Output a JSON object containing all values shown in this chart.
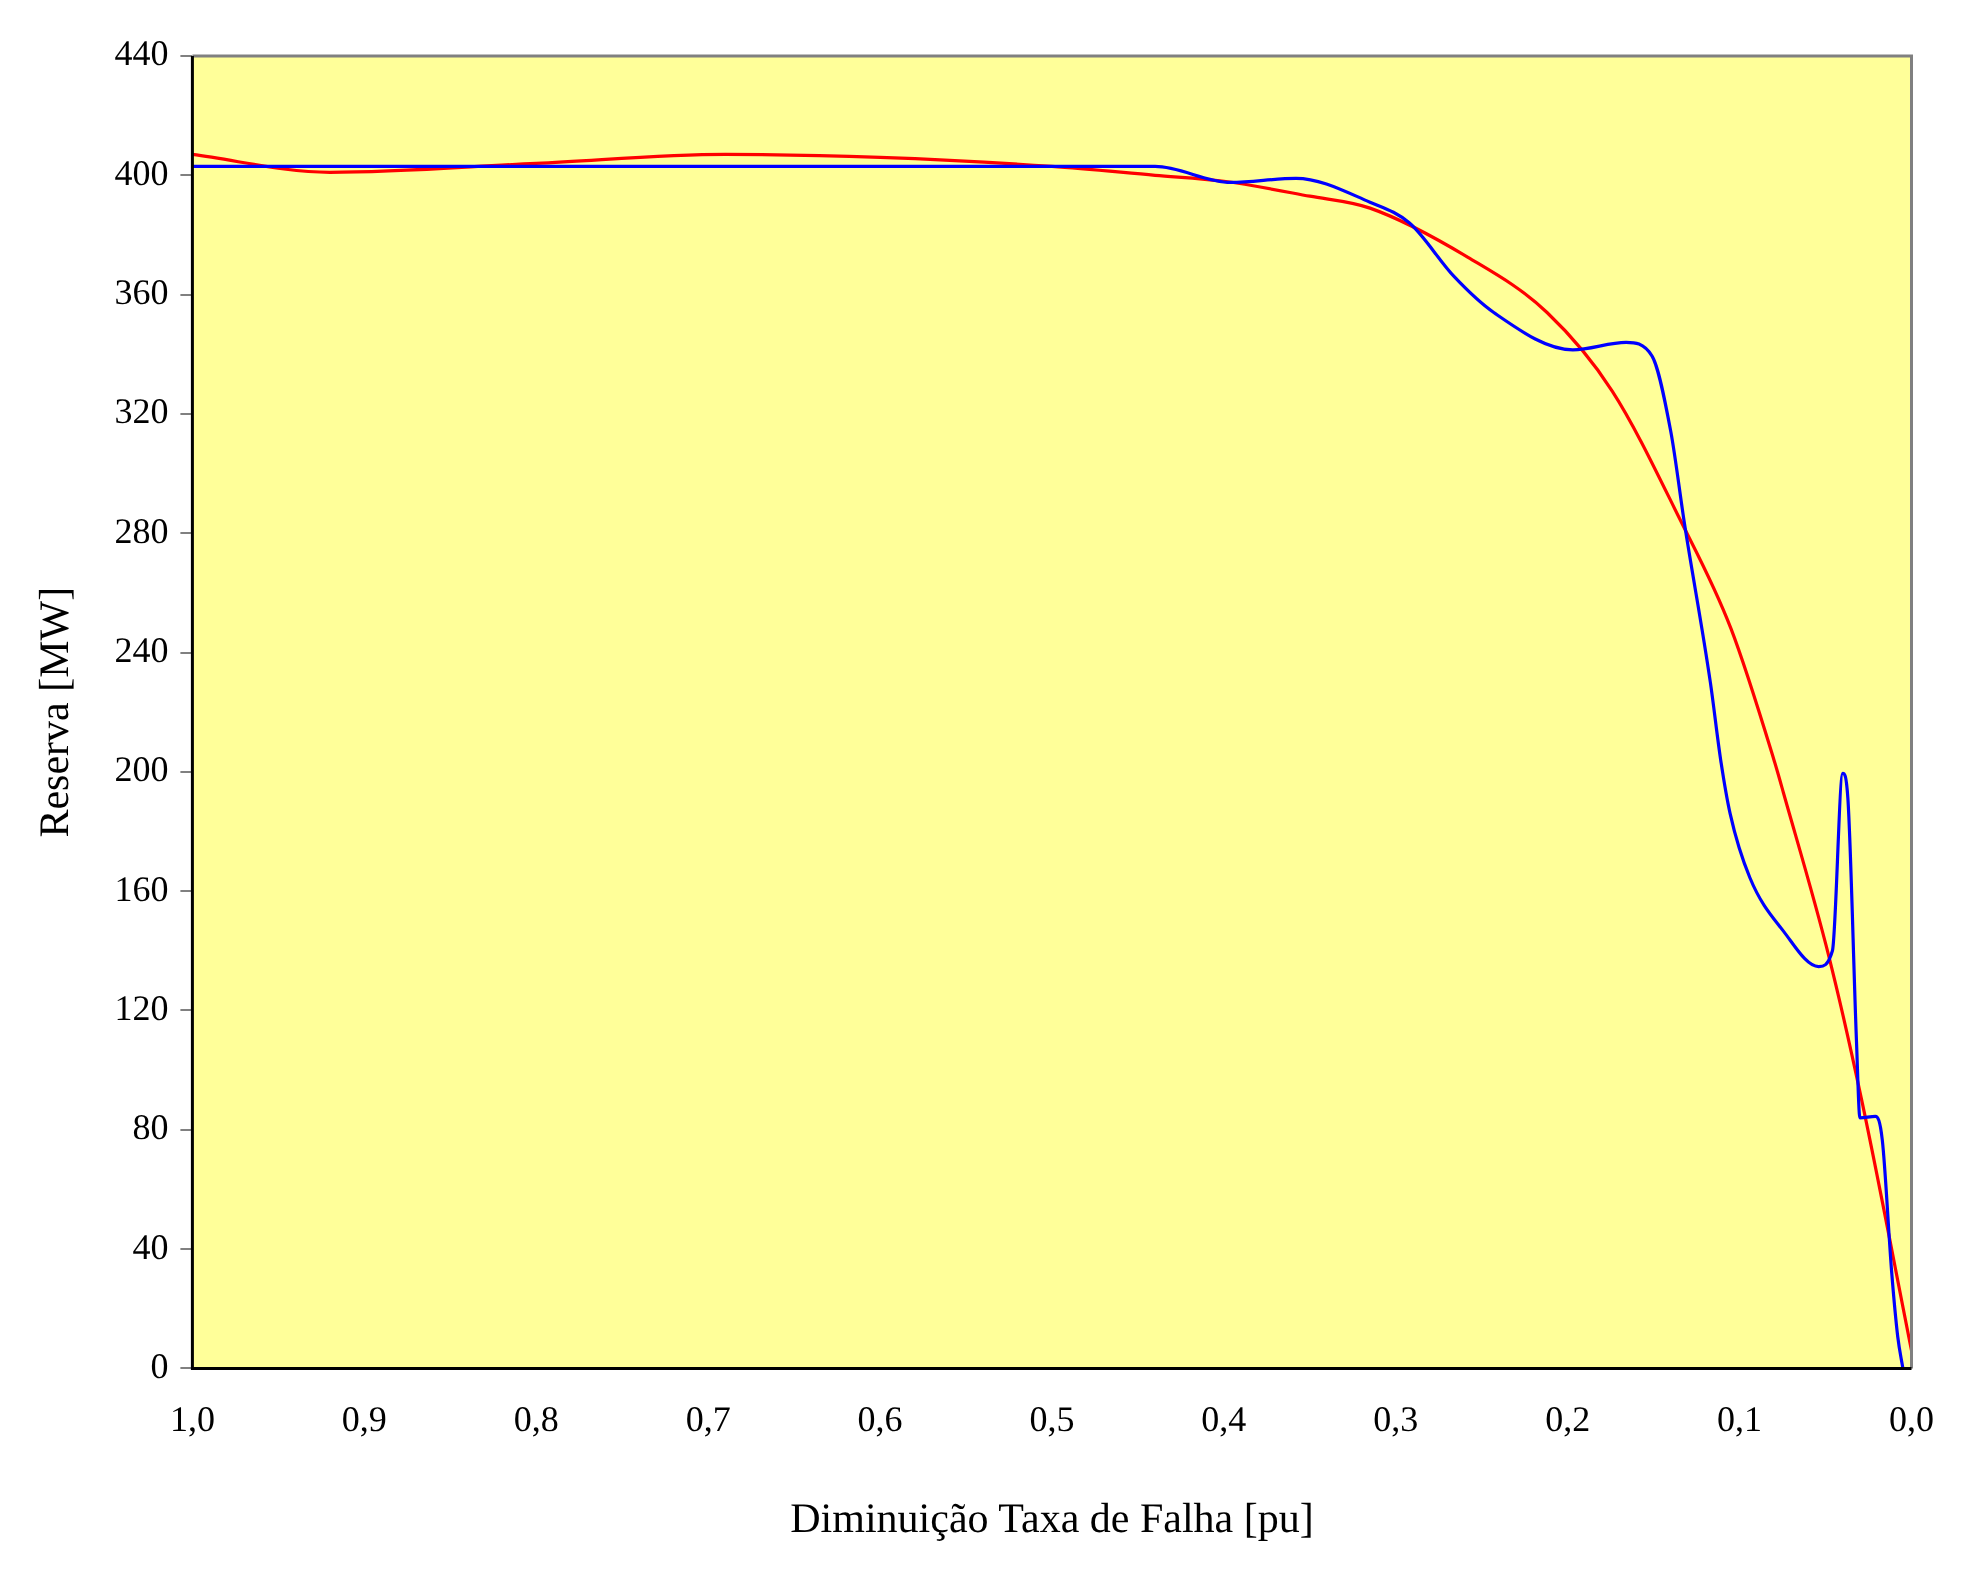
{
  "chart_data": {
    "type": "line",
    "xlabel": "Diminuição Taxa de Falha [pu]",
    "ylabel": "Reserva [MW]",
    "xlim": [
      1.0,
      0.0
    ],
    "xticks": [
      {
        "value": 1.0,
        "label": "1,0"
      },
      {
        "value": 0.9,
        "label": "0,9"
      },
      {
        "value": 0.8,
        "label": "0,8"
      },
      {
        "value": 0.7,
        "label": "0,7"
      },
      {
        "value": 0.6,
        "label": "0,6"
      },
      {
        "value": 0.5,
        "label": "0,5"
      },
      {
        "value": 0.4,
        "label": "0,4"
      },
      {
        "value": 0.3,
        "label": "0,3"
      },
      {
        "value": 0.2,
        "label": "0,2"
      },
      {
        "value": 0.1,
        "label": "0,1"
      },
      {
        "value": 0.0,
        "label": "0,0"
      }
    ],
    "ylim": [
      0,
      440
    ],
    "yticks": [
      0,
      40,
      80,
      120,
      160,
      200,
      240,
      280,
      320,
      360,
      400,
      440
    ],
    "grid": false,
    "legend": false,
    "marker": "none",
    "line_style": "solid",
    "series": [
      {
        "color": "#0000ff",
        "x": [
          1.0,
          0.9,
          0.8,
          0.7,
          0.6,
          0.5,
          0.44,
          0.396,
          0.358,
          0.315,
          0.292,
          0.266,
          0.243,
          0.197,
          0.166,
          0.151,
          0.14,
          0.132,
          0.117,
          0.111,
          0.1055,
          0.094,
          0.0745,
          0.054,
          0.046,
          0.04,
          0.037,
          0.032,
          0.03,
          0.021,
          0.017,
          0.0115,
          0.008,
          0.005
        ],
        "values": [
          403,
          403,
          403,
          403,
          403,
          403,
          403,
          397.6,
          399,
          391,
          384,
          366,
          354,
          341.5,
          344,
          339.5,
          314,
          283,
          230,
          204,
          186,
          164.5,
          146.6,
          134.7,
          140,
          199.5,
          191,
          109.6,
          84,
          84.5,
          76.6,
          32,
          10.6,
          0
        ]
      },
      {
        "type": "line",
        "color": "#ff0000",
        "x": [
          1.0,
          0.92,
          0.8,
          0.69,
          0.6,
          0.5,
          0.44,
          0.4,
          0.35,
          0.315,
          0.258,
          0.212,
          0.174,
          0.135,
          0.105,
          0.08,
          0.0745,
          0.048,
          0.029,
          0.0
        ],
        "values": [
          407,
          401,
          404,
          407,
          406,
          403,
          400,
          398,
          393,
          389,
          372.5,
          354,
          327.6,
          285,
          248,
          204,
          193,
          138,
          90,
          6
        ]
      }
    ]
  }
}
